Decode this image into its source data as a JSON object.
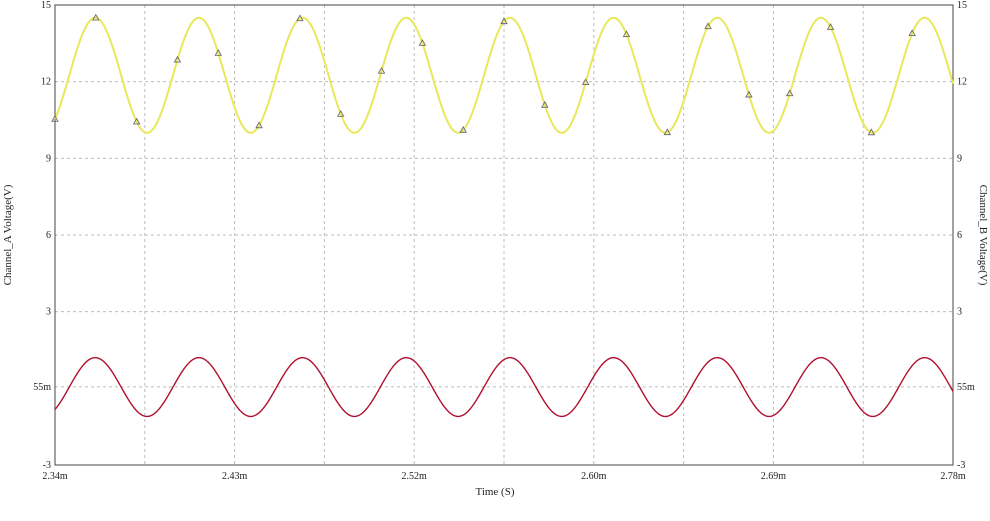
{
  "chart_data": {
    "type": "line",
    "xlabel": "Time (S)",
    "ylabel_left": "Channel_A Voltage(V)",
    "ylabel_right": "Channel_B Voltage(V)",
    "xlim": [
      0.00234,
      0.00278
    ],
    "ylim": [
      -3,
      15
    ],
    "x_ticks": [
      {
        "value": 0.00234,
        "label": "2.34m"
      },
      {
        "value": 0.002428,
        "label": "2.43m"
      },
      {
        "value": 0.002516,
        "label": "2.52m"
      },
      {
        "value": 0.002604,
        "label": "2.60m"
      },
      {
        "value": 0.002692,
        "label": "2.69m"
      },
      {
        "value": 0.00278,
        "label": "2.78m"
      }
    ],
    "y_ticks": [
      {
        "value": -3,
        "label": "-3"
      },
      {
        "value": 0.055,
        "label": "55m"
      },
      {
        "value": 3,
        "label": "3"
      },
      {
        "value": 6,
        "label": "6"
      },
      {
        "value": 9,
        "label": "9"
      },
      {
        "value": 12,
        "label": "12"
      },
      {
        "value": 15,
        "label": "15"
      }
    ],
    "grid": true,
    "series": [
      {
        "color": "#e8e85a",
        "marker": "triangle",
        "offset": 12.25,
        "amplitude": 2.25,
        "period": 5.08e-05,
        "phase_x": 0.002347,
        "markers_x": [
          0.00234,
          0.00236,
          0.00238,
          0.0024,
          0.00242,
          0.00244,
          0.00246,
          0.00248,
          0.0025,
          0.00252,
          0.00254,
          0.00256,
          0.00258,
          0.0026,
          0.00262,
          0.00264,
          0.00266,
          0.00268,
          0.0027,
          0.00272,
          0.00274,
          0.00276
        ]
      },
      {
        "color": "#b01030",
        "marker": "none",
        "offset": 0.05,
        "amplitude": 1.15,
        "period": 5.08e-05,
        "phase_x": 0.002347
      }
    ]
  }
}
